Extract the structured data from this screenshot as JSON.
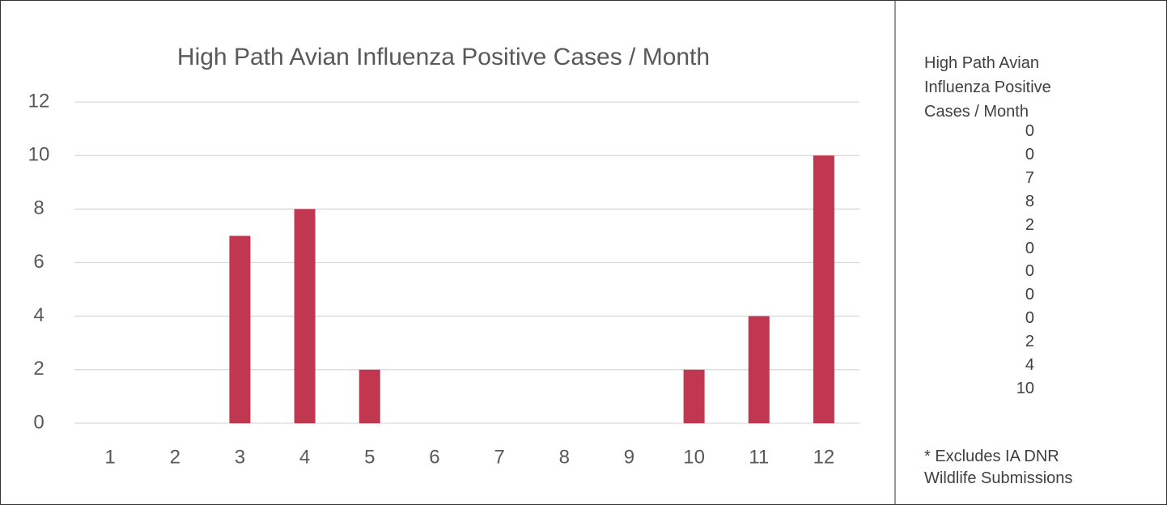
{
  "chart_data": {
    "type": "bar",
    "title": "High Path Avian Influenza Positive Cases / Month",
    "categories": [
      "1",
      "2",
      "3",
      "4",
      "5",
      "6",
      "7",
      "8",
      "9",
      "10",
      "11",
      "12"
    ],
    "values": [
      0,
      0,
      7,
      8,
      2,
      0,
      0,
      0,
      0,
      2,
      4,
      10
    ],
    "color": "#c0374f",
    "ylim": [
      0,
      12
    ],
    "yticks": [
      0,
      2,
      4,
      6,
      8,
      10,
      12
    ],
    "grid": true,
    "footnote": "* Excludes IA DNR Wildlife Submissions"
  }
}
